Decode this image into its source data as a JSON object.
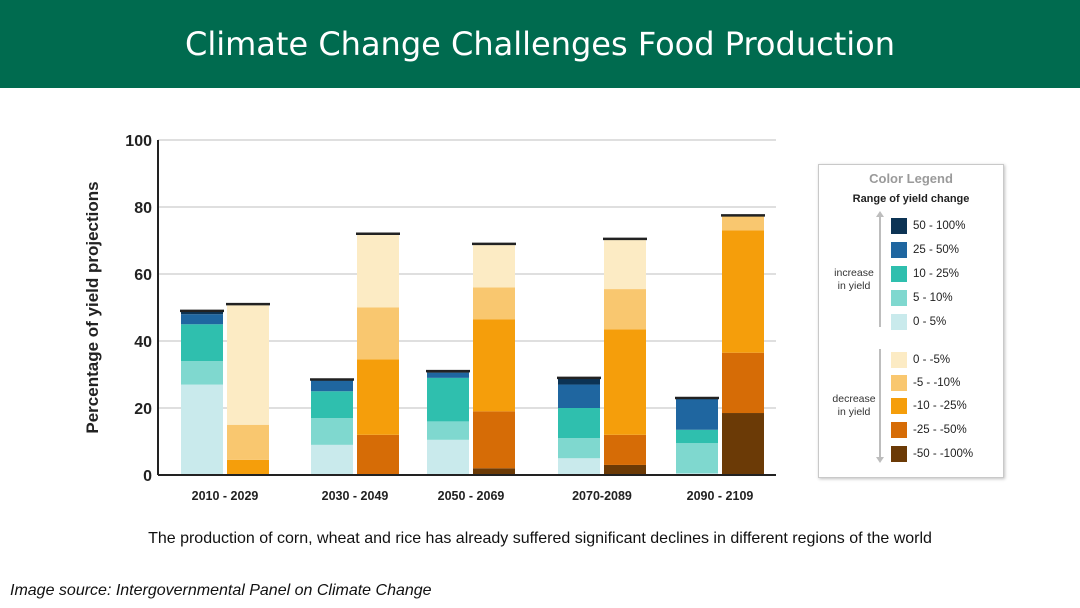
{
  "header": {
    "title": "Climate Change Challenges Food Production"
  },
  "caption": "The production of corn, wheat and rice has already suffered significant declines in different regions of the world",
  "source": "Image source: Intergovernmental Panel on Climate Change",
  "legend": {
    "title": "Color Legend",
    "subtitle": "Range of yield change",
    "increase_label_1": "increase",
    "increase_label_2": "in yield",
    "decrease_label_1": "decrease",
    "decrease_label_2": "in yield",
    "items": [
      {
        "label": "50 - 100%",
        "color": "#0c3354"
      },
      {
        "label": "25 - 50%",
        "color": "#1f66a0"
      },
      {
        "label": "10 - 25%",
        "color": "#2fbfae"
      },
      {
        "label": "5 - 10%",
        "color": "#7fd8cf"
      },
      {
        "label": "0 - 5%",
        "color": "#c9eaec"
      },
      {
        "label": "0 - -5%",
        "color": "#fcebc4"
      },
      {
        "label": "-5 - -10%",
        "color": "#f9c76f"
      },
      {
        "label": "-10 - -25%",
        "color": "#f59e0b"
      },
      {
        "label": "-25 - -50%",
        "color": "#d66c06"
      },
      {
        "label": "-50 - -100%",
        "color": "#6b3a06"
      }
    ]
  },
  "chart_data": {
    "type": "bar",
    "stacked": true,
    "ylabel": "Percentage of yield projections",
    "ylim": [
      0,
      100
    ],
    "yticks": [
      0,
      20,
      40,
      60,
      80,
      100
    ],
    "grid": true,
    "legend_position": "right",
    "categories": [
      "2010 - 2029",
      "2030 - 2049",
      "2050 - 2069",
      "2070-2089",
      "2090 - 2109"
    ],
    "series": [
      {
        "name": "50 - 100%",
        "color": "#0c3354",
        "values": [
          1,
          0,
          0.5,
          2,
          0
        ]
      },
      {
        "name": "25 - 50%",
        "color": "#1f66a0",
        "values": [
          3,
          3.5,
          1.5,
          7,
          9.5
        ]
      },
      {
        "name": "10 - 25%",
        "color": "#2fbfae",
        "values": [
          11,
          8,
          13,
          9,
          4
        ]
      },
      {
        "name": "5 - 10%",
        "color": "#7fd8cf",
        "values": [
          7,
          8,
          5.5,
          6,
          9
        ]
      },
      {
        "name": "0 - 5%",
        "color": "#c9eaec",
        "values": [
          27,
          9,
          10.5,
          5,
          0.5
        ]
      },
      {
        "name": "0 - -5%",
        "color": "#fcebc4",
        "values": [
          36,
          22,
          13,
          15,
          0
        ]
      },
      {
        "name": "-5 - -10%",
        "color": "#f9c76f",
        "values": [
          10.5,
          15.5,
          9.5,
          12,
          4.5
        ]
      },
      {
        "name": "-10 - -25%",
        "color": "#f59e0b",
        "values": [
          4.5,
          22.5,
          27.5,
          31.5,
          36.5
        ]
      },
      {
        "name": "-25 - -50%",
        "color": "#d66c06",
        "values": [
          0,
          12,
          17,
          9,
          18
        ]
      },
      {
        "name": "-50 - -100%",
        "color": "#6b3a06",
        "values": [
          0,
          0,
          2,
          3,
          18.5
        ]
      }
    ],
    "increase_series_count": 5
  }
}
